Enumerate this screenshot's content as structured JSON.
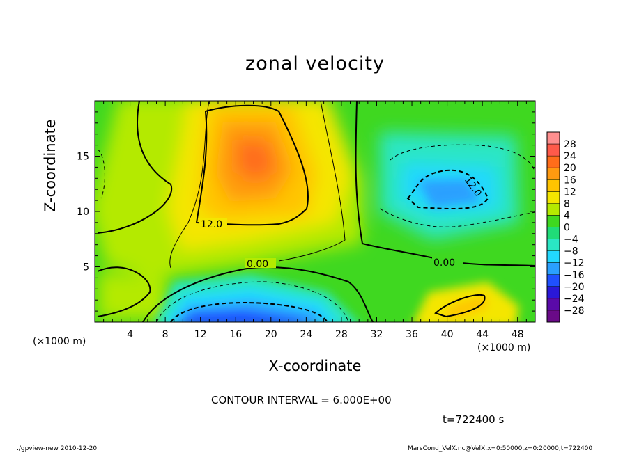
{
  "chart_data": {
    "type": "heatmap",
    "title": "zonal velocity",
    "xlabel": "X-coordinate",
    "ylabel": "Z-coordinate",
    "x_unit": "(×1000 m)",
    "y_unit": "(×1000 m)",
    "x_ticks": [
      "4",
      "8",
      "12",
      "16",
      "20",
      "24",
      "28",
      "32",
      "36",
      "40",
      "44",
      "48"
    ],
    "y_ticks": [
      "5",
      "10",
      "15"
    ],
    "xlim": [
      0,
      50
    ],
    "ylim": [
      0,
      20
    ],
    "colorbar": {
      "labels": [
        "28",
        "24",
        "20",
        "16",
        "12",
        "8",
        "4",
        "0",
        "−4",
        "−8",
        "−12",
        "−16",
        "−20",
        "−24",
        "−28"
      ],
      "colors": [
        "#ff8f8f",
        "#ff5a4a",
        "#ff6d1a",
        "#ff9a10",
        "#ffc400",
        "#f4e600",
        "#b4ea00",
        "#3fd820",
        "#20dc78",
        "#2ae6c4",
        "#22d8ff",
        "#2aa0ff",
        "#1f50ff",
        "#2a18d8",
        "#5a0aa8",
        "#6a0a88"
      ]
    },
    "contour_labels": [
      "12.0",
      "0.00",
      "0.00",
      "12.0"
    ],
    "contour_interval": "CONTOUR INTERVAL = 6.000E+00",
    "time": "t=722400 s",
    "features": [
      {
        "kind": "max",
        "x": 18,
        "z": 15,
        "value": 18
      },
      {
        "kind": "min",
        "x": 40,
        "z": 11,
        "value": -12
      },
      {
        "kind": "min",
        "x": 15,
        "z": 0.5,
        "value": -18
      },
      {
        "kind": "max",
        "x": 42,
        "z": 1.5,
        "value": 13
      }
    ]
  },
  "footer": {
    "left": "./gpview-new   2010-12-20",
    "right": "MarsCond_VelX.nc@VelX,x=0:50000,z=0:20000,t=722400"
  }
}
